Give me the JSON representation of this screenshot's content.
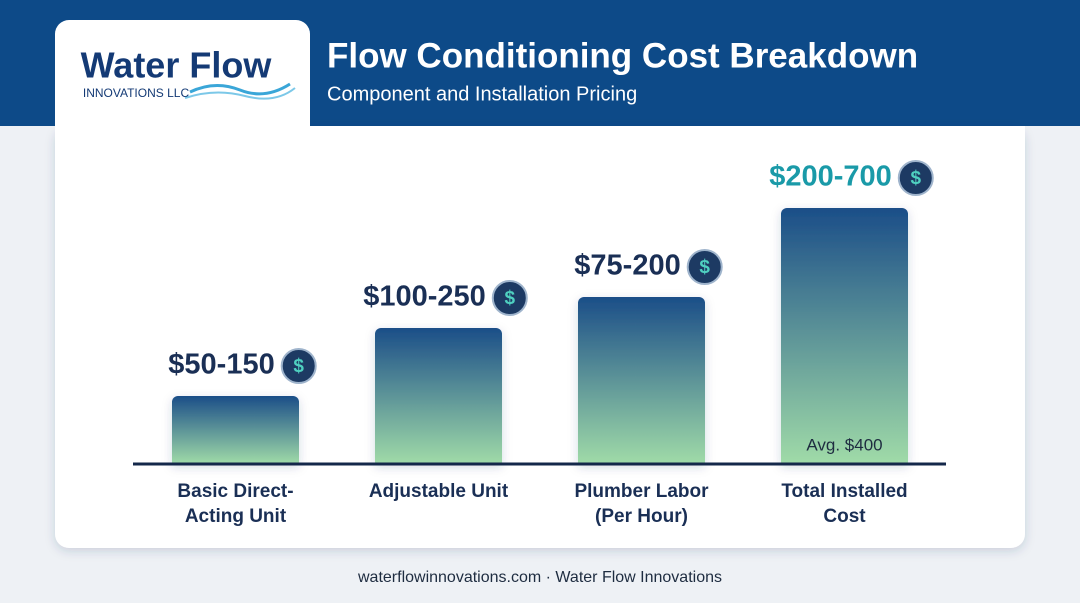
{
  "header": {
    "title": "Flow Conditioning Cost Breakdown",
    "subtitle": "Component and Installation Pricing"
  },
  "logo": {
    "name": "Water Flow",
    "tagline": "INNOVATIONS LLC"
  },
  "bars": [
    {
      "category": [
        "Basic Direct-",
        "Acting Unit"
      ],
      "price": "$50-150"
    },
    {
      "category": [
        "Adjustable Unit"
      ],
      "price": "$100-250"
    },
    {
      "category": [
        "Plumber Labor",
        "(Per Hour)"
      ],
      "price": "$75-200"
    },
    {
      "category": [
        "Total Installed",
        "Cost"
      ],
      "price": "$200-700",
      "note": "Avg. $400"
    }
  ],
  "footer": "waterflowinnovations.com · Water Flow Innovations"
}
